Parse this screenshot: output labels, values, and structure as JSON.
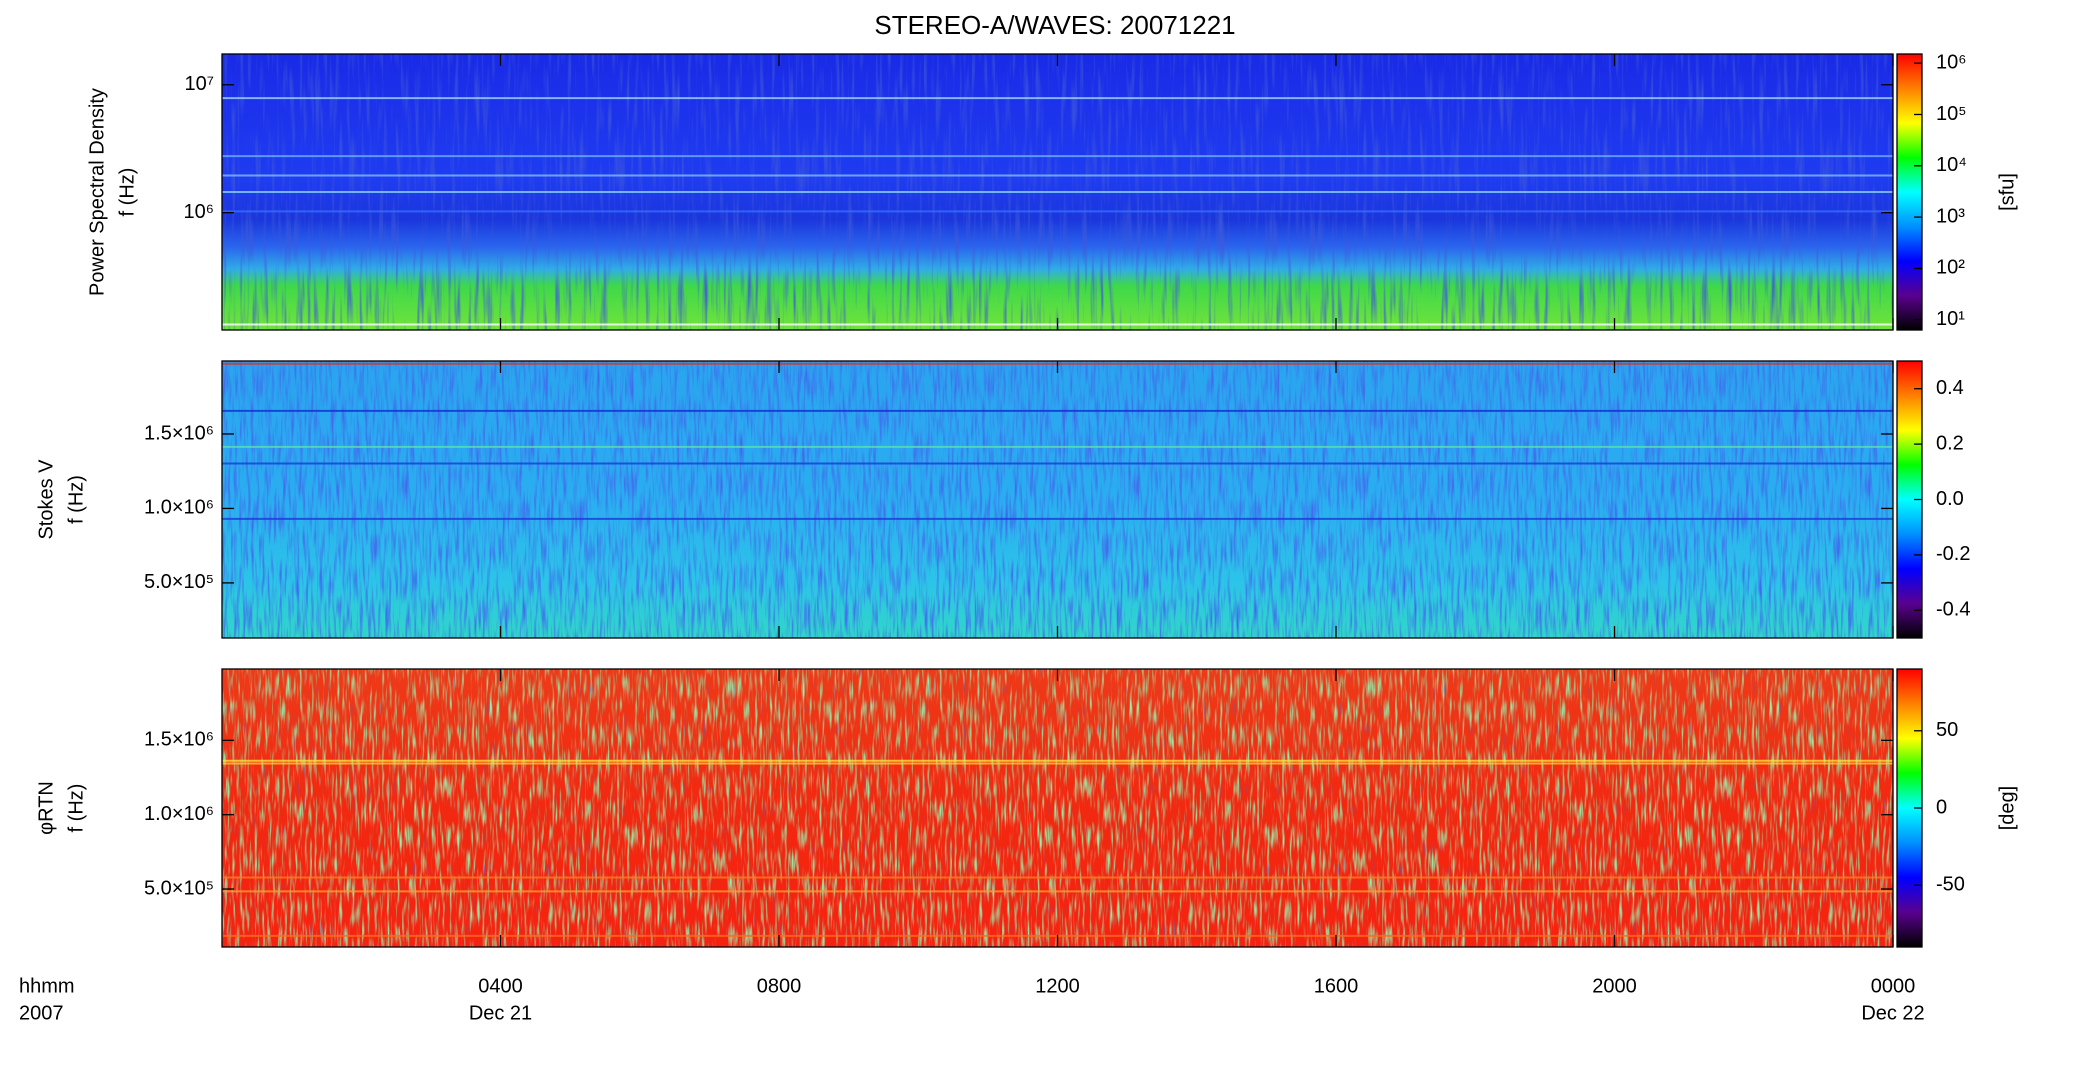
{
  "chart_data": [
    {
      "type": "spectrogram",
      "title": "STEREO-A/WAVES: 20071221",
      "ylabel": [
        "Power Spectral Density",
        "f (Hz)"
      ],
      "yscale": "log",
      "ylim": [
        121000,
        17400000
      ],
      "yticks": [
        {
          "value": 1000000,
          "label": "10⁶"
        },
        {
          "value": 10000000,
          "label": "10⁷"
        }
      ],
      "colorbar": {
        "label": "[sfu]",
        "scale": "log",
        "lim": [
          6.3,
          1510000
        ],
        "ticks": [
          {
            "value": 10,
            "label": "10¹"
          },
          {
            "value": 100,
            "label": "10²"
          },
          {
            "value": 1000,
            "label": "10³"
          },
          {
            "value": 10000,
            "label": "10⁴"
          },
          {
            "value": 100000,
            "label": "10⁵"
          },
          {
            "value": 1000000,
            "label": "10⁶"
          }
        ],
        "colorscale": [
          "#000000",
          "#5a0090",
          "#0000ff",
          "#0090ff",
          "#00ffff",
          "#00ff00",
          "#ffff00",
          "#ff8000",
          "#ff0000"
        ]
      }
    },
    {
      "type": "spectrogram",
      "ylabel": [
        "Stokes V",
        "f (Hz)"
      ],
      "yscale": "linear",
      "ylim": [
        130000,
        1990000
      ],
      "yticks": [
        {
          "value": 500000,
          "label": "5.0×10⁵"
        },
        {
          "value": 1000000,
          "label": "1.0×10⁶"
        },
        {
          "value": 1500000,
          "label": "1.5×10⁶"
        }
      ],
      "colorbar": {
        "scale": "linear",
        "lim": [
          -0.5,
          0.5
        ],
        "ticks": [
          -0.4,
          -0.2,
          {
            "value": 0,
            "label": "0.0"
          },
          0.2,
          0.4
        ],
        "colorscale": [
          "#000000",
          "#5a0090",
          "#0000ff",
          "#0090ff",
          "#00ffff",
          "#00ff00",
          "#ffff00",
          "#ff8000",
          "#ff0000"
        ]
      }
    },
    {
      "type": "spectrogram",
      "ylabel": [
        "φRTN",
        "f (Hz)"
      ],
      "yscale": "linear",
      "ylim": [
        110000,
        1980000
      ],
      "yticks": [
        {
          "value": 500000,
          "label": "5.0×10⁵"
        },
        {
          "value": 1000000,
          "label": "1.0×10⁶"
        },
        {
          "value": 1500000,
          "label": "1.5×10⁶"
        }
      ],
      "colorbar": {
        "label": "[deg]",
        "scale": "linear",
        "lim": [
          -90,
          90
        ],
        "ticks": [
          -50,
          0,
          50
        ],
        "colorscale": [
          "#000000",
          "#5a0090",
          "#0000ff",
          "#0090ff",
          "#00ffff",
          "#00ff00",
          "#ffff00",
          "#ff8000",
          "#ff0000"
        ]
      },
      "xlabel": [
        "hhmm",
        "2007"
      ],
      "xlim": [
        0,
        24
      ],
      "xticks": [
        {
          "value": 4,
          "label": "0400"
        },
        {
          "value": 8,
          "label": "0800"
        },
        {
          "value": 12,
          "label": "1200"
        },
        {
          "value": 16,
          "label": "1600"
        },
        {
          "value": 20,
          "label": "2000"
        },
        {
          "value": 24,
          "label": "0000"
        }
      ],
      "xtick_dates": [
        {
          "value": 4,
          "label": "Dec 21"
        },
        {
          "value": 24,
          "label": "Dec 22"
        }
      ]
    }
  ]
}
